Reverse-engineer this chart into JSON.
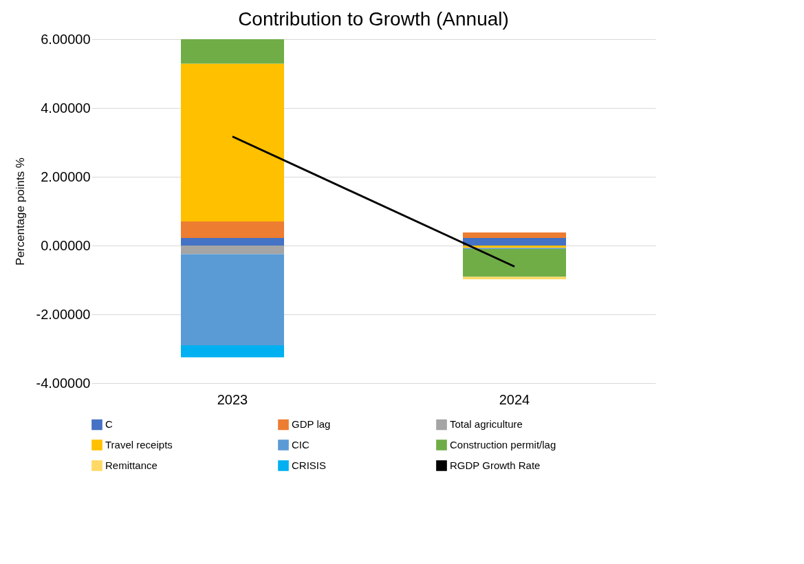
{
  "chart_data": {
    "type": "bar",
    "title": "Contribution to Growth (Annual)",
    "ylabel": "Percentage points %",
    "categories": [
      "2023",
      "2024"
    ],
    "stacked": true,
    "series": [
      {
        "name": "C",
        "color": "#4472c4",
        "values": [
          0.22,
          0.22
        ]
      },
      {
        "name": "GDP lag",
        "color": "#ed7d31",
        "values": [
          0.48,
          0.16
        ]
      },
      {
        "name": "Total agriculture",
        "color": "#a5a5a5",
        "values": [
          -0.25,
          null
        ]
      },
      {
        "name": "Travel receipts",
        "color": "#ffc000",
        "values": [
          4.59,
          -0.07
        ]
      },
      {
        "name": "CIC",
        "color": "#5b9bd5",
        "values": [
          -2.65,
          -0.03
        ]
      },
      {
        "name": "Construction permit/lag",
        "color": "#70ad47",
        "values": [
          0.71,
          -0.81
        ]
      },
      {
        "name": "Remittance",
        "color": "#ffd966",
        "values": [
          0.0,
          -0.07
        ]
      },
      {
        "name": "CRISIS",
        "color": "#00b0f0",
        "values": [
          -0.35,
          null
        ]
      },
      {
        "name": "RGDP Growth Rate",
        "color": "#000000",
        "type": "line",
        "values": [
          3.17,
          -0.61
        ]
      }
    ],
    "ylim": [
      -4,
      6
    ],
    "yticks": [
      {
        "value": -4,
        "label": "-4.00000"
      },
      {
        "value": -2,
        "label": "-2.00000"
      },
      {
        "value": 0,
        "label": "0.00000"
      },
      {
        "value": 2,
        "label": "2.00000"
      },
      {
        "value": 4,
        "label": "4.00000"
      },
      {
        "value": 6,
        "label": "6.00000"
      }
    ],
    "grid": "y",
    "legend": "bottom",
    "marker": "none",
    "line_style": "solid"
  }
}
